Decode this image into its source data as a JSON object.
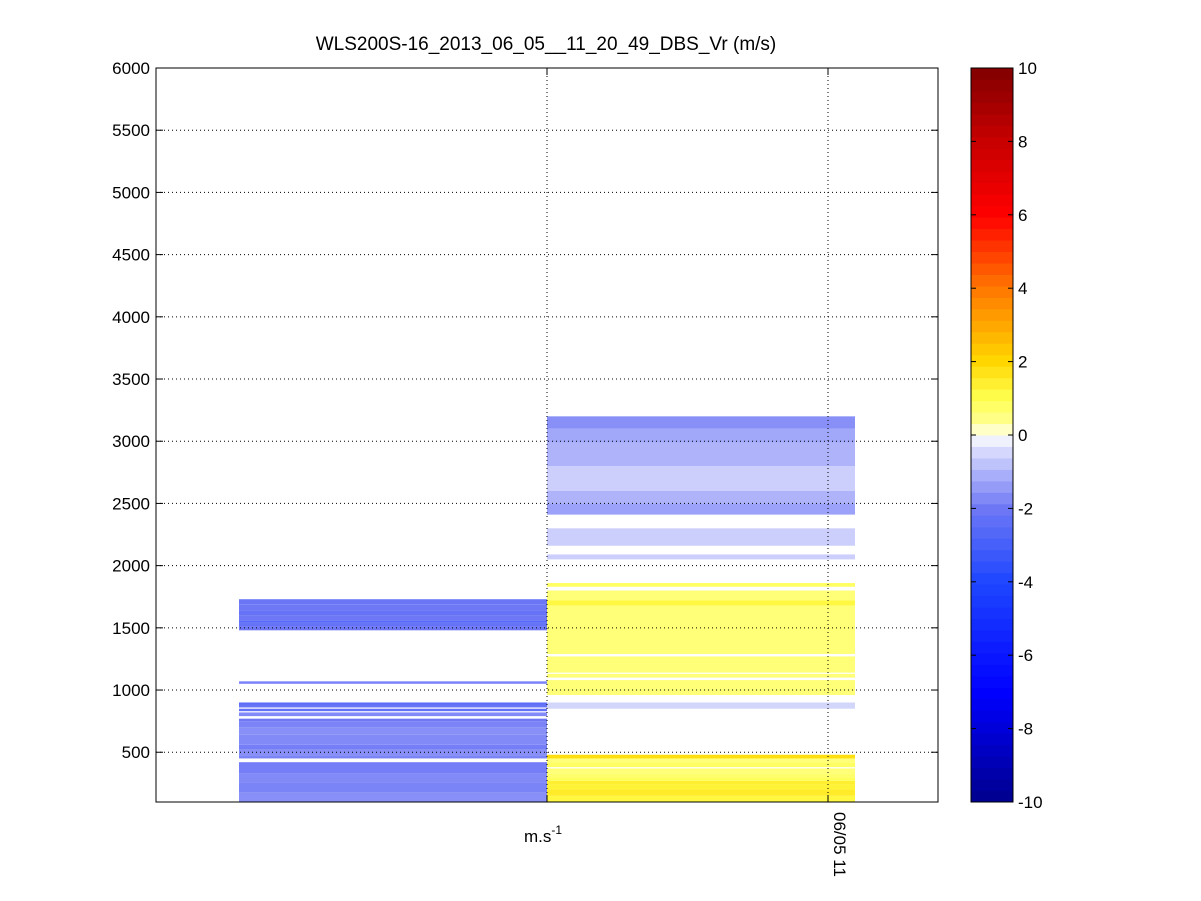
{
  "chart_data": {
    "type": "heatmap",
    "title": "WLS200S-16_2013_06_05__11_20_49_DBS_Vr (m/s)",
    "ylim": [
      100,
      6000
    ],
    "y_ticks": [
      500,
      1000,
      1500,
      2000,
      2500,
      3000,
      3500,
      4000,
      4500,
      5000,
      5500,
      6000
    ],
    "x_tick_labels": [
      {
        "text": "m.s",
        "superscript": "-1"
      },
      {
        "text": "06/05 11",
        "rotated": true
      }
    ],
    "grid": true,
    "colorbar": {
      "range": [
        -10,
        10
      ],
      "ticks": [
        -10,
        -8,
        -6,
        -4,
        -2,
        0,
        2,
        4,
        6,
        8,
        10
      ],
      "colormap": "blue-white-yellow-red"
    },
    "columns": [
      {
        "bands": [
          {
            "y0": 100,
            "y1": 180,
            "value": -1.6
          },
          {
            "y0": 180,
            "y1": 260,
            "value": -1.8
          },
          {
            "y0": 260,
            "y1": 330,
            "value": -1.7
          },
          {
            "y0": 330,
            "y1": 420,
            "value": -1.9
          },
          {
            "y0": 450,
            "y1": 470,
            "value": -1.8
          },
          {
            "y0": 470,
            "y1": 520,
            "value": -1.6
          },
          {
            "y0": 520,
            "y1": 560,
            "value": -1.9
          },
          {
            "y0": 560,
            "y1": 640,
            "value": -1.7
          },
          {
            "y0": 640,
            "y1": 700,
            "value": -1.6
          },
          {
            "y0": 700,
            "y1": 750,
            "value": -1.8
          },
          {
            "y0": 750,
            "y1": 770,
            "value": -2.0
          },
          {
            "y0": 790,
            "y1": 820,
            "value": -1.7
          },
          {
            "y0": 830,
            "y1": 850,
            "value": -2.3
          },
          {
            "y0": 860,
            "y1": 880,
            "value": -2.2
          },
          {
            "y0": 880,
            "y1": 900,
            "value": -2.5
          },
          {
            "y0": 1050,
            "y1": 1070,
            "value": -1.8
          },
          {
            "y0": 1480,
            "y1": 1510,
            "value": -2.0
          },
          {
            "y0": 1510,
            "y1": 1540,
            "value": -2.2
          },
          {
            "y0": 1540,
            "y1": 1560,
            "value": -2.6
          },
          {
            "y0": 1560,
            "y1": 1600,
            "value": -2.0
          },
          {
            "y0": 1600,
            "y1": 1640,
            "value": -2.2
          },
          {
            "y0": 1640,
            "y1": 1690,
            "value": -2.0
          },
          {
            "y0": 1690,
            "y1": 1730,
            "value": -2.1
          }
        ]
      },
      {
        "bands": [
          {
            "y0": 100,
            "y1": 150,
            "value": 1.2
          },
          {
            "y0": 150,
            "y1": 200,
            "value": 1.5
          },
          {
            "y0": 200,
            "y1": 240,
            "value": 1.3
          },
          {
            "y0": 240,
            "y1": 270,
            "value": 1.4
          },
          {
            "y0": 270,
            "y1": 300,
            "value": 0.9
          },
          {
            "y0": 300,
            "y1": 330,
            "value": 0.7
          },
          {
            "y0": 330,
            "y1": 370,
            "value": 0.6
          },
          {
            "y0": 380,
            "y1": 420,
            "value": 0.8
          },
          {
            "y0": 420,
            "y1": 450,
            "value": 0.6
          },
          {
            "y0": 450,
            "y1": 480,
            "value": 1.8
          },
          {
            "y0": 850,
            "y1": 900,
            "value": -0.5
          },
          {
            "y0": 960,
            "y1": 1080,
            "value": 0.6
          },
          {
            "y0": 1100,
            "y1": 1130,
            "value": 0.6
          },
          {
            "y0": 1140,
            "y1": 1270,
            "value": 0.6
          },
          {
            "y0": 1290,
            "y1": 1680,
            "value": 0.6
          },
          {
            "y0": 1680,
            "y1": 1720,
            "value": 1.2
          },
          {
            "y0": 1720,
            "y1": 1800,
            "value": 0.6
          },
          {
            "y0": 1830,
            "y1": 1860,
            "value": 0.8
          },
          {
            "y0": 2050,
            "y1": 2090,
            "value": -0.6
          },
          {
            "y0": 2160,
            "y1": 2300,
            "value": -0.6
          },
          {
            "y0": 2410,
            "y1": 2500,
            "value": -1.3
          },
          {
            "y0": 2500,
            "y1": 2600,
            "value": -1.0
          },
          {
            "y0": 2600,
            "y1": 2800,
            "value": -0.6
          },
          {
            "y0": 2800,
            "y1": 2990,
            "value": -1.0
          },
          {
            "y0": 2990,
            "y1": 3100,
            "value": -1.2
          },
          {
            "y0": 3100,
            "y1": 3200,
            "value": -1.6
          }
        ]
      }
    ]
  }
}
